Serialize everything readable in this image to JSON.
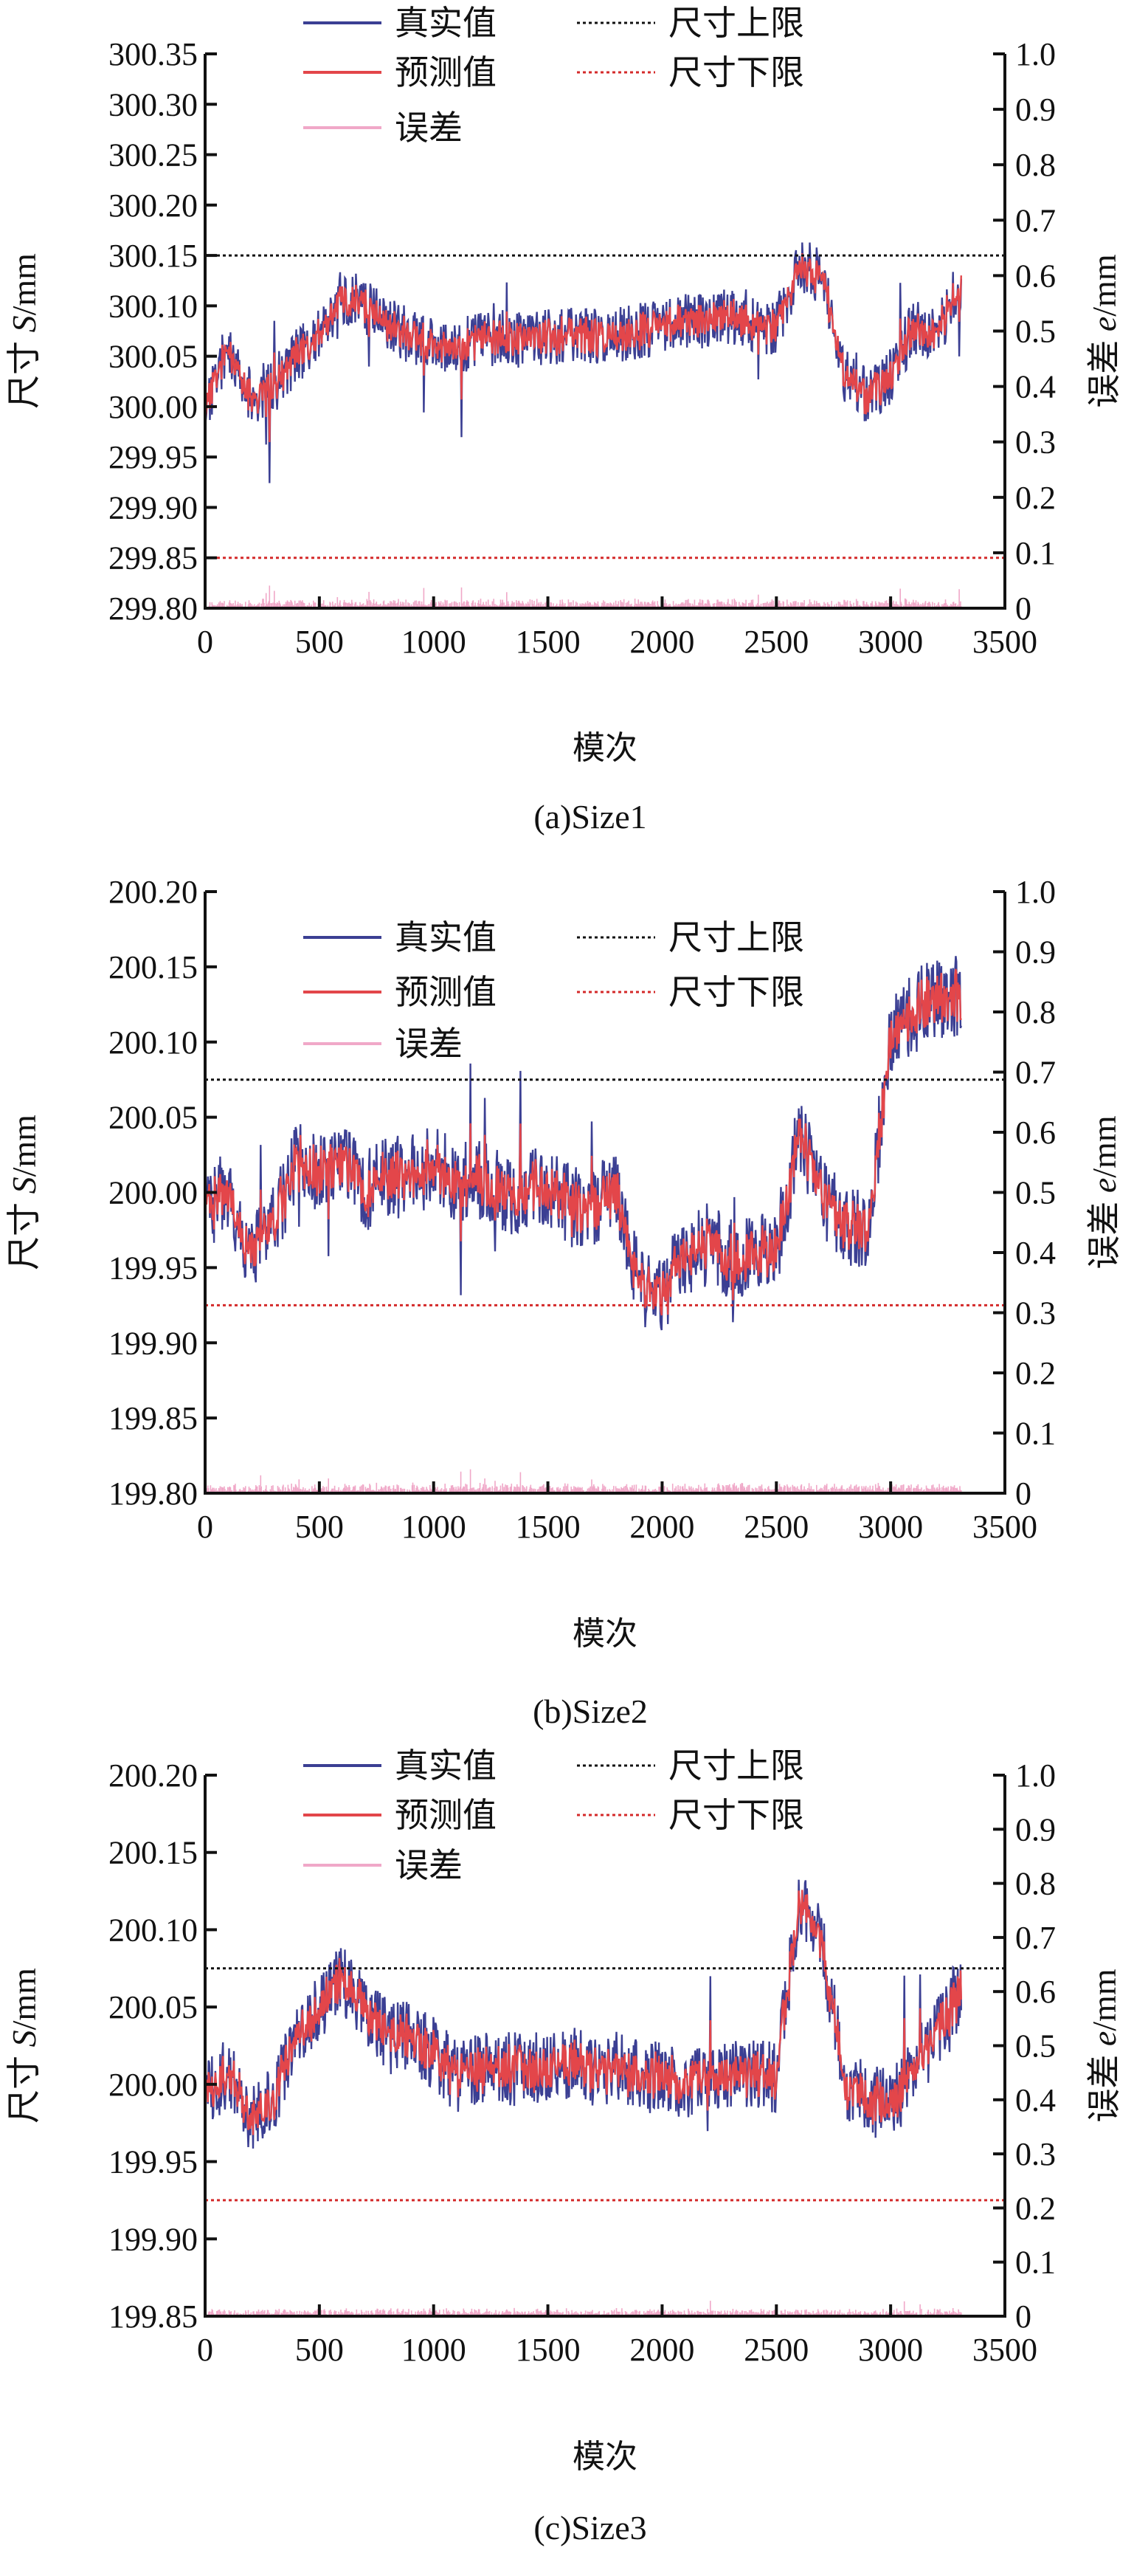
{
  "chart_data": [
    {
      "type": "line",
      "caption": "(a)Size1",
      "xlabel": "模次",
      "ylabel_prefix": "尺寸 ",
      "ylabel_var": "S",
      "ylabel_unit": "/mm",
      "y2label_prefix": "误差 ",
      "y2label_var": "e",
      "y2label_unit": "/mm",
      "xlim": [
        0,
        3500
      ],
      "xticks": [
        "0",
        "500",
        "1000",
        "1500",
        "2000",
        "2500",
        "3000",
        "3500"
      ],
      "ylim": [
        299.8,
        300.35
      ],
      "yticks": [
        "299.80",
        "299.85",
        "299.90",
        "299.95",
        "300.00",
        "300.05",
        "300.10",
        "300.15",
        "300.20",
        "300.25",
        "300.30",
        "300.35"
      ],
      "y2lim": [
        0,
        1.0
      ],
      "y2ticks": [
        "0",
        "0.1",
        "0.2",
        "0.3",
        "0.4",
        "0.5",
        "0.6",
        "0.7",
        "0.8",
        "0.9",
        "1.0"
      ],
      "upper_limit": 300.15,
      "lower_limit": 299.85,
      "legend": {
        "true": "真实值",
        "pred": "预测值",
        "error": "误差",
        "upper": "尺寸上限",
        "lower": "尺寸下限"
      },
      "sample_step": 100,
      "true_level": [
        300.0,
        300.06,
        300.01,
        300.02,
        300.05,
        300.07,
        300.11,
        300.1,
        300.08,
        300.07,
        300.06,
        300.06,
        300.065,
        300.07,
        300.065,
        300.07,
        300.07,
        300.07,
        300.07,
        300.075,
        300.08,
        300.085,
        300.085,
        300.09,
        300.08,
        300.08,
        300.14,
        300.13,
        300.03,
        300.01,
        300.03,
        300.08,
        300.07,
        300.12
      ],
      "noise": 0.035,
      "seed": 11
    },
    {
      "type": "line",
      "caption": "(b)Size2",
      "xlabel": "模次",
      "ylabel_prefix": "尺寸 ",
      "ylabel_var": "S",
      "ylabel_unit": "/mm",
      "y2label_prefix": "误差 ",
      "y2label_var": "e",
      "y2label_unit": "/mm",
      "xlim": [
        0,
        3500
      ],
      "xticks": [
        "0",
        "500",
        "1000",
        "1500",
        "2000",
        "2500",
        "3000",
        "3500"
      ],
      "ylim": [
        199.8,
        200.2
      ],
      "yticks": [
        "199.80",
        "199.85",
        "199.90",
        "199.95",
        "200.00",
        "200.05",
        "200.10",
        "200.15",
        "200.20"
      ],
      "y2lim": [
        0,
        1.0
      ],
      "y2ticks": [
        "0",
        "0.1",
        "0.2",
        "0.3",
        "0.4",
        "0.5",
        "0.6",
        "0.7",
        "0.8",
        "0.9",
        "1.0"
      ],
      "upper_limit": 200.075,
      "lower_limit": 199.925,
      "legend": {
        "true": "真实值",
        "pred": "预测值",
        "error": "误差",
        "upper": "尺寸上限",
        "lower": "尺寸下限"
      },
      "sample_step": 100,
      "true_level": [
        199.99,
        200.0,
        199.96,
        199.98,
        200.02,
        200.015,
        200.02,
        200.0,
        200.01,
        200.01,
        200.02,
        200.005,
        200.01,
        200.0,
        200.0,
        200.005,
        199.99,
        199.99,
        200.0,
        199.94,
        199.93,
        199.96,
        199.965,
        199.955,
        199.96,
        199.96,
        200.04,
        199.995,
        199.98,
        199.975,
        200.1,
        200.12,
        200.13,
        200.13
      ],
      "noise": 0.035,
      "seed": 23
    },
    {
      "type": "line",
      "caption": "(c)Size3",
      "xlabel": "模次",
      "ylabel_prefix": "尺寸 ",
      "ylabel_var": "S",
      "ylabel_unit": "/mm",
      "y2label_prefix": "误差 ",
      "y2label_var": "e",
      "y2label_unit": "/mm",
      "xlim": [
        0,
        3500
      ],
      "xticks": [
        "0",
        "500",
        "1000",
        "1500",
        "2000",
        "2500",
        "3000",
        "3500"
      ],
      "ylim": [
        199.85,
        200.2
      ],
      "yticks": [
        "199.85",
        "199.90",
        "199.95",
        "200.00",
        "200.05",
        "200.10",
        "200.15",
        "200.20"
      ],
      "y2lim": [
        0,
        1.0
      ],
      "y2ticks": [
        "0",
        "0.1",
        "0.2",
        "0.3",
        "0.4",
        "0.5",
        "0.6",
        "0.7",
        "0.8",
        "0.9",
        "1.0"
      ],
      "upper_limit": 200.075,
      "lower_limit": 199.925,
      "legend": {
        "true": "真实值",
        "pred": "预测值",
        "error": "误差",
        "upper": "尺寸上限",
        "lower": "尺寸下限"
      },
      "sample_step": 100,
      "true_level": [
        199.99,
        200.01,
        199.98,
        199.99,
        200.03,
        200.05,
        200.07,
        200.05,
        200.03,
        200.03,
        200.02,
        200.005,
        200.01,
        200.01,
        200.01,
        200.01,
        200.015,
        200.01,
        200.01,
        200.005,
        200.005,
        200.0,
        200.005,
        200.005,
        200.005,
        200.005,
        200.12,
        200.09,
        200.0,
        199.99,
        199.985,
        200.01,
        200.03,
        200.06
      ],
      "noise": 0.03,
      "seed": 37
    }
  ],
  "colors": {
    "true": "#3b3f93",
    "pred": "#e3464a",
    "error": "#f0a8c8",
    "upper": "#111111",
    "lower": "#d42a2a"
  }
}
